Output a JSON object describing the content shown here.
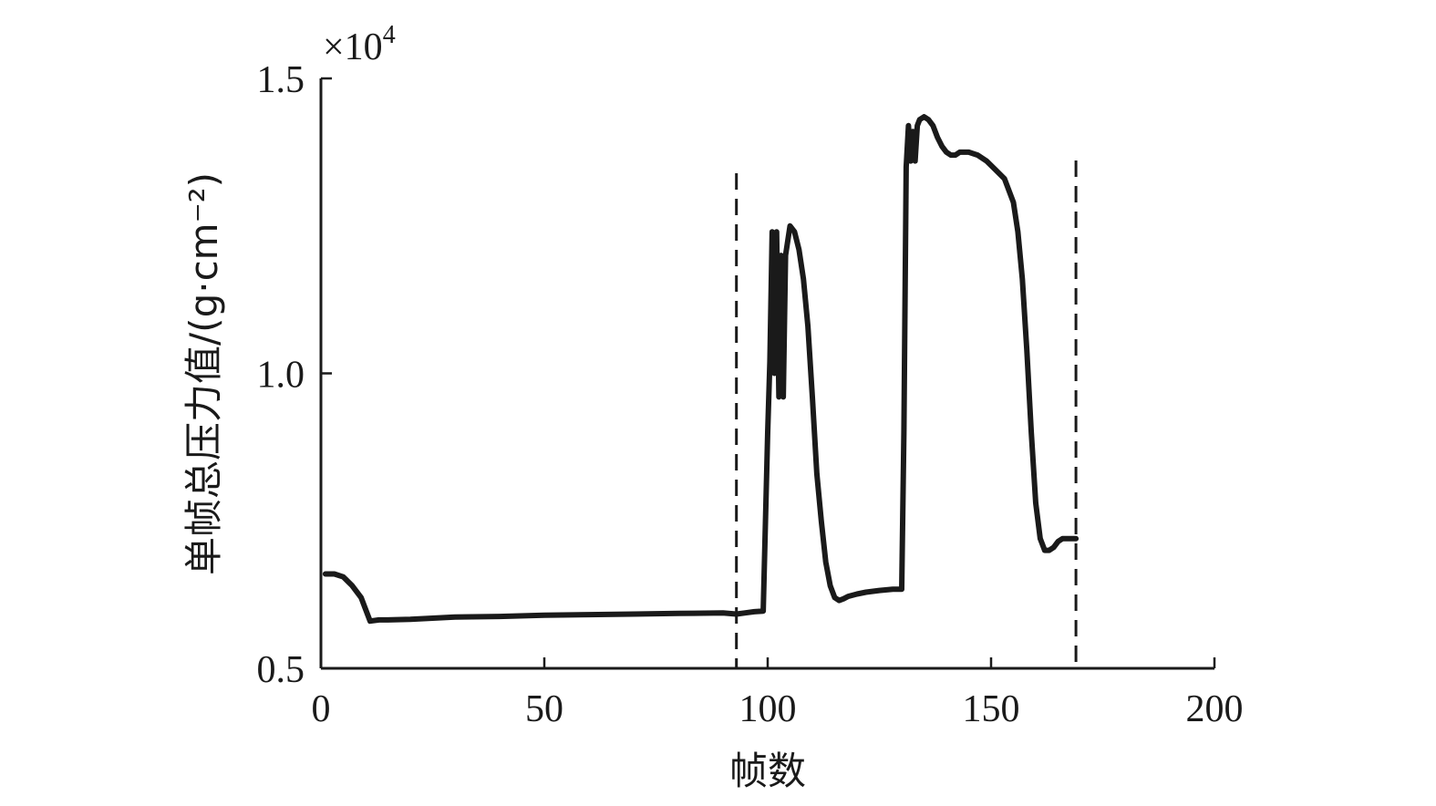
{
  "chart_data": {
    "type": "line",
    "title": "",
    "xlabel": "帧数",
    "ylabel": "单帧总压力值/(g·cm⁻²)",
    "y_multiplier_label": "×10",
    "y_multiplier_exponent": "4",
    "xlim": [
      0,
      200
    ],
    "ylim": [
      0.5,
      1.5
    ],
    "x_ticks": [
      0,
      50,
      100,
      150,
      200
    ],
    "x_tick_labels": [
      "0",
      "50",
      "100",
      "150",
      "200"
    ],
    "y_ticks": [
      0.5,
      1.0,
      1.5
    ],
    "y_tick_labels": [
      "0.5",
      "1.0",
      "1.5"
    ],
    "grid": false,
    "legend": "none",
    "line_color": "#1a1a1a",
    "reference_lines_x": [
      93,
      169
    ],
    "series": [
      {
        "x": [
          1,
          3,
          5,
          7,
          9,
          10,
          11,
          13,
          15,
          20,
          25,
          30,
          40,
          50,
          60,
          70,
          80,
          90,
          93,
          95,
          97,
          99,
          100,
          100.5,
          101,
          101.5,
          102,
          102.5,
          103,
          103.5,
          104,
          105,
          106,
          107,
          108,
          109,
          110,
          111,
          112,
          113,
          114,
          115,
          116,
          117,
          118,
          120,
          122,
          125,
          128,
          130,
          130.5,
          131,
          131.5,
          132,
          132.5,
          133,
          133.5,
          134,
          135,
          136,
          137,
          138,
          139,
          140,
          141,
          142,
          143,
          145,
          147,
          149,
          151,
          153,
          155,
          156,
          157,
          158,
          159,
          160,
          161,
          162,
          163,
          164,
          165,
          166,
          167,
          168,
          169
        ],
        "y": [
          0.66,
          0.66,
          0.655,
          0.64,
          0.62,
          0.6,
          0.58,
          0.582,
          0.582,
          0.583,
          0.585,
          0.587,
          0.588,
          0.59,
          0.591,
          0.592,
          0.593,
          0.594,
          0.592,
          0.594,
          0.596,
          0.597,
          0.9,
          1.02,
          1.24,
          1.0,
          1.24,
          0.96,
          1.2,
          0.96,
          1.2,
          1.25,
          1.24,
          1.21,
          1.16,
          1.08,
          0.96,
          0.83,
          0.75,
          0.68,
          0.64,
          0.62,
          0.615,
          0.618,
          0.622,
          0.626,
          0.629,
          0.632,
          0.634,
          0.634,
          0.9,
          1.35,
          1.42,
          1.36,
          1.41,
          1.36,
          1.42,
          1.43,
          1.435,
          1.43,
          1.42,
          1.4,
          1.385,
          1.375,
          1.37,
          1.37,
          1.375,
          1.375,
          1.37,
          1.36,
          1.345,
          1.33,
          1.29,
          1.24,
          1.16,
          1.04,
          0.9,
          0.78,
          0.72,
          0.7,
          0.7,
          0.705,
          0.715,
          0.72,
          0.72,
          0.72,
          0.72
        ]
      }
    ]
  }
}
